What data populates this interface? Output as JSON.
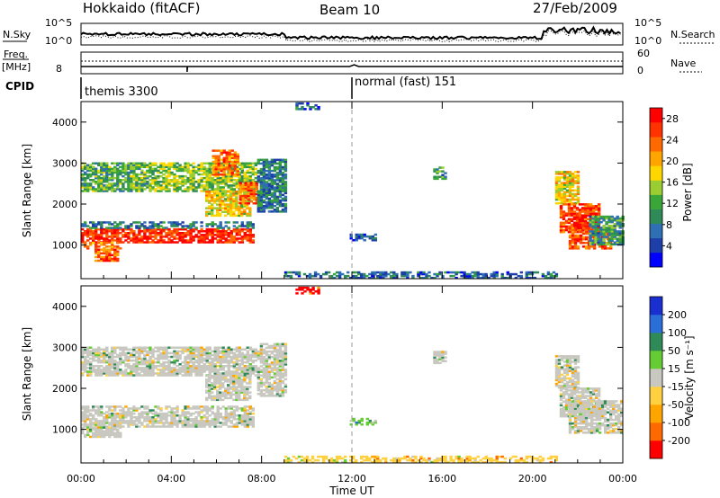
{
  "header": {
    "station": "Hokkaido (fitACF)",
    "beam": "Beam 10",
    "date": "27/Feb/2009"
  },
  "status_panels": {
    "nsky_label": "N.Sky",
    "nsky_ticks": [
      "10^5",
      "10^0"
    ],
    "nsearch_label": "N.Search",
    "nsearch_ticks": [
      "10^5",
      "10^0"
    ],
    "freq_label": "Freq.",
    "freq_unit": "[MHz]",
    "freq_ticks": [
      "8"
    ],
    "nave_label": "Nave",
    "nave_ticks": [
      "60",
      "0"
    ],
    "cpid_label": "CPID",
    "cpid_modes": [
      {
        "label": "themis 3300",
        "start_hour": 0
      },
      {
        "label": "normal (fast) 151",
        "start_hour": 12
      }
    ]
  },
  "chart_data": [
    {
      "type": "heatmap",
      "name": "power",
      "ylabel": "Slant Range [km]",
      "yticks": [
        "1000",
        "2000",
        "3000",
        "4000"
      ],
      "ylim": [
        180,
        4500
      ],
      "xlim": [
        0,
        24
      ],
      "colorbar_label": "Power [dB]",
      "colorbar_ticks": [
        "4",
        "8",
        "12",
        "16",
        "20",
        "24",
        "28"
      ],
      "colorbar_range": [
        0,
        30
      ],
      "colors": [
        "#0000ff",
        "#1e3fa8",
        "#2f6fb4",
        "#2e8b57",
        "#3aa63a",
        "#9acd32",
        "#ffd700",
        "#ffa500",
        "#ff6a00",
        "#ff3300",
        "#ff0000"
      ],
      "regions": [
        {
          "t0": 0.0,
          "t1": 7.6,
          "r0": 1050,
          "r1": 1400,
          "v": 27
        },
        {
          "t0": 0.0,
          "t1": 1.8,
          "r0": 900,
          "r1": 1050,
          "v": 22
        },
        {
          "t0": 0.6,
          "t1": 1.6,
          "r0": 600,
          "r1": 900,
          "v": 24
        },
        {
          "t0": 0.0,
          "t1": 7.6,
          "r0": 1400,
          "r1": 1550,
          "v": 8
        },
        {
          "t0": 0.0,
          "t1": 3.0,
          "r0": 2300,
          "r1": 3000,
          "v": 12
        },
        {
          "t0": 3.0,
          "t1": 7.8,
          "r0": 2300,
          "r1": 3000,
          "v": 14
        },
        {
          "t0": 5.8,
          "t1": 6.9,
          "r0": 2700,
          "r1": 3300,
          "v": 23
        },
        {
          "t0": 5.5,
          "t1": 7.5,
          "r0": 1700,
          "r1": 2300,
          "v": 18
        },
        {
          "t0": 7.0,
          "t1": 7.8,
          "r0": 2000,
          "r1": 2500,
          "v": 24
        },
        {
          "t0": 7.8,
          "t1": 9.0,
          "r0": 1800,
          "r1": 3100,
          "v": 8
        },
        {
          "t0": 9.5,
          "t1": 10.5,
          "r0": 4300,
          "r1": 4450,
          "v": 6
        },
        {
          "t0": 11.9,
          "t1": 13.0,
          "r0": 1100,
          "r1": 1250,
          "v": 6
        },
        {
          "t0": 15.6,
          "t1": 16.2,
          "r0": 2600,
          "r1": 2900,
          "v": 10
        },
        {
          "t0": 21.0,
          "t1": 22.0,
          "r0": 2000,
          "r1": 2800,
          "v": 18
        },
        {
          "t0": 21.2,
          "t1": 23.0,
          "r0": 1300,
          "r1": 2000,
          "v": 26
        },
        {
          "t0": 21.6,
          "t1": 23.5,
          "r0": 900,
          "r1": 1400,
          "v": 25
        },
        {
          "t0": 22.5,
          "t1": 24.0,
          "r0": 1000,
          "r1": 1700,
          "v": 10
        },
        {
          "t0": 9.0,
          "t1": 21.0,
          "r0": 180,
          "r1": 320,
          "v": 7
        }
      ]
    },
    {
      "type": "heatmap",
      "name": "velocity",
      "ylabel": "Slant Range [km]",
      "yticks": [
        "1000",
        "2000",
        "3000",
        "4000"
      ],
      "ylim": [
        180,
        4500
      ],
      "xlim": [
        0,
        24
      ],
      "xticks": [
        "00:00",
        "04:00",
        "08:00",
        "12:00",
        "16:00",
        "20:00",
        "00:00"
      ],
      "xlabel": "Time UT",
      "colorbar_label": "Velocity [m s⁻¹]",
      "colorbar_ticks": [
        "200",
        "100",
        "50",
        "15",
        "-15",
        "-50",
        "-100",
        "-200"
      ],
      "colors": [
        "#1a2fd0",
        "#2a6fd8",
        "#2e8b57",
        "#66cc33",
        "#c8c8c0",
        "#ffd040",
        "#ffa500",
        "#ff6a00",
        "#ff0000"
      ],
      "regions": [
        {
          "t0": 0.0,
          "t1": 7.6,
          "r0": 1050,
          "r1": 1400,
          "v": 4
        },
        {
          "t0": 0.0,
          "t1": 1.8,
          "r0": 800,
          "r1": 1050,
          "v": 4
        },
        {
          "t0": 0.0,
          "t1": 7.6,
          "r0": 1400,
          "r1": 1550,
          "v": 4
        },
        {
          "t0": 0.0,
          "t1": 3.0,
          "r0": 2300,
          "r1": 3000,
          "v": 4
        },
        {
          "t0": 3.0,
          "t1": 7.8,
          "r0": 2300,
          "r1": 3000,
          "v": 4
        },
        {
          "t0": 5.5,
          "t1": 7.5,
          "r0": 1700,
          "r1": 2300,
          "v": 4
        },
        {
          "t0": 7.8,
          "t1": 9.0,
          "r0": 1800,
          "r1": 3100,
          "v": 4
        },
        {
          "t0": 9.5,
          "t1": 10.5,
          "r0": 4300,
          "r1": 4450,
          "v": 8
        },
        {
          "t0": 11.9,
          "t1": 13.0,
          "r0": 1100,
          "r1": 1250,
          "v": 3
        },
        {
          "t0": 15.6,
          "t1": 16.2,
          "r0": 2600,
          "r1": 2900,
          "v": 4
        },
        {
          "t0": 21.0,
          "t1": 22.0,
          "r0": 2000,
          "r1": 2800,
          "v": 4
        },
        {
          "t0": 21.2,
          "t1": 23.0,
          "r0": 1300,
          "r1": 2000,
          "v": 4
        },
        {
          "t0": 21.6,
          "t1": 24.0,
          "r0": 900,
          "r1": 1700,
          "v": 4
        },
        {
          "t0": 9.0,
          "t1": 21.0,
          "r0": 180,
          "r1": 320,
          "v": 5
        }
      ]
    }
  ]
}
